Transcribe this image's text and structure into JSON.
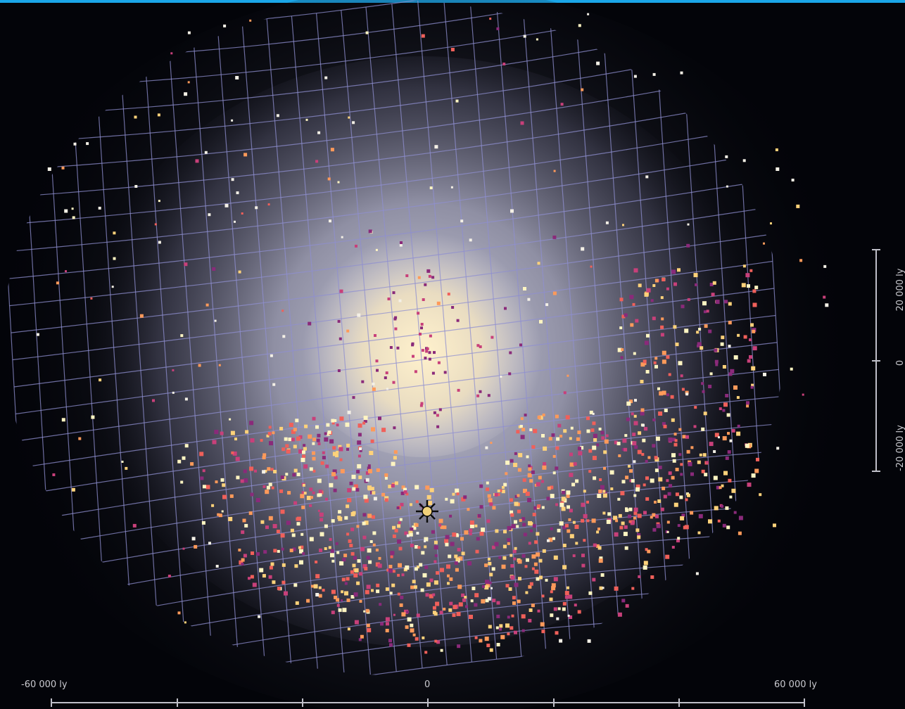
{
  "colors": {
    "top_bar": "#1aa6e8",
    "background": "#030409",
    "grid": "#8f8fd0",
    "core_glow": "#fff1cc",
    "disk_glow": "#c8c8e0",
    "star_palette": [
      "#fff5c2",
      "#ffd27a",
      "#ff9a5a",
      "#f0605a",
      "#c8407a",
      "#8a2a7a"
    ],
    "sun_marker": "#f2d27a"
  },
  "map": {
    "horizontal_scale": {
      "left_label": "-60 000 ly",
      "center_label": "0",
      "right_label": "60 000 ly"
    },
    "vertical_scale": {
      "top_label": "20 000 ly",
      "center_label": "0",
      "bottom_label": "-20 000 ly"
    },
    "sun_marker_icon": "sun-icon"
  }
}
